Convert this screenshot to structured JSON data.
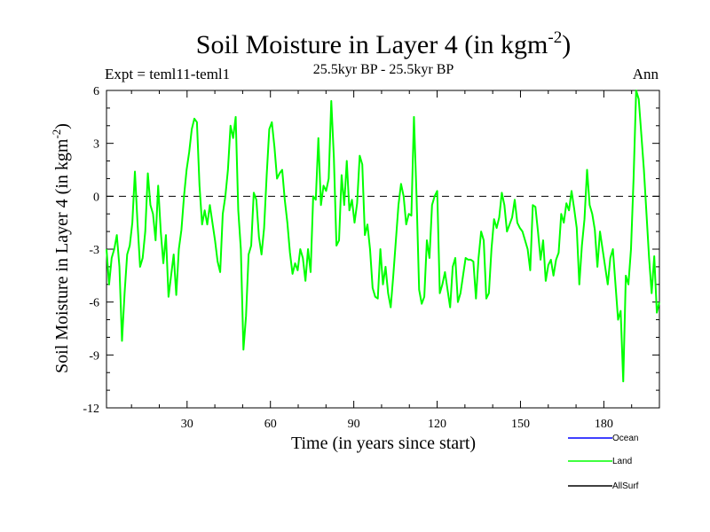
{
  "chart_data": {
    "type": "line",
    "title": "Soil Moisture in Layer 4 (in kgm",
    "title_superscript": "-2",
    "title_close": ")",
    "subtitle": "25.5kyr BP - 25.5kyr BP",
    "left_label": "Expt = teml11-teml1",
    "right_label": "Ann",
    "xlabel": "Time (in years since start)",
    "ylabel": "Soil Moisture in Layer 4 (in kgm",
    "ylabel_superscript": "-2",
    "ylabel_close": ")",
    "xlim": [
      1,
      200
    ],
    "ylim": [
      -12,
      6
    ],
    "xticks": [
      30,
      60,
      90,
      120,
      150,
      180
    ],
    "xtick_labels": [
      "30",
      "60",
      "90",
      "120",
      "150",
      "180"
    ],
    "yticks": [
      -12,
      -9,
      -6,
      -3,
      0,
      3,
      6
    ],
    "ytick_labels": [
      "-12",
      "-9",
      "-6",
      "-3",
      "0",
      "3",
      "6"
    ],
    "reference_line": 0,
    "legend": [
      {
        "name": "Ocean",
        "color": "#0000ff"
      },
      {
        "name": "Land",
        "color": "#00ff00"
      },
      {
        "name": "AllSurf",
        "color": "#000000"
      }
    ],
    "series": [
      {
        "name": "Land",
        "color": "#00ff00",
        "values": [
          -3.0,
          -5.0,
          -3.5,
          -3.0,
          -2.2,
          -4.0,
          -8.2,
          -5.5,
          -3.3,
          -2.8,
          -1.5,
          1.4,
          -1.5,
          -4.0,
          -3.5,
          -2.0,
          1.3,
          -0.5,
          -1.0,
          -2.5,
          0.6,
          -2.0,
          -3.8,
          -2.2,
          -5.7,
          -4.5,
          -3.3,
          -5.6,
          -3.0,
          -1.9,
          0.0,
          1.5,
          2.5,
          3.8,
          4.4,
          4.2,
          0.6,
          -1.6,
          -0.8,
          -1.6,
          -0.5,
          -1.5,
          -2.5,
          -3.7,
          -4.3,
          -1.0,
          0.0,
          1.5,
          4.0,
          3.3,
          4.5,
          -0.8,
          -3.0,
          -8.7,
          -6.8,
          -3.3,
          -2.8,
          0.2,
          -0.2,
          -2.3,
          -3.3,
          -1.8,
          1.2,
          3.8,
          4.2,
          2.8,
          1.0,
          1.3,
          1.5,
          -0.2,
          -1.5,
          -3.2,
          -4.4,
          -3.8,
          -4.2,
          -3.0,
          -3.5,
          -4.8,
          -3.0,
          -4.3,
          0.0,
          -0.2,
          3.3,
          -0.5,
          0.6,
          0.3,
          1.0,
          5.4,
          2.2,
          -2.8,
          -2.5,
          1.2,
          -0.5,
          2.0,
          -0.8,
          -0.2,
          -1.5,
          -0.4,
          2.3,
          1.8,
          -2.2,
          -1.6,
          -3.0,
          -5.2,
          -5.7,
          -5.8,
          -3.0,
          -5.0,
          -4.0,
          -5.5,
          -6.3,
          -4.5,
          -2.5,
          -0.5,
          0.7,
          0.0,
          -1.6,
          -1.0,
          -1.1,
          4.5,
          0.0,
          -5.3,
          -6.1,
          -5.7,
          -2.5,
          -3.5,
          -0.5,
          0.0,
          0.3,
          -5.5,
          -5.0,
          -4.3,
          -5.3,
          -6.3,
          -4.0,
          -3.5,
          -6.0,
          -5.5,
          -4.5,
          -3.5,
          -3.6,
          -3.6,
          -3.7,
          -5.8,
          -3.5,
          -2.0,
          -2.5,
          -5.8,
          -5.5,
          -3.0,
          -1.3,
          -1.8,
          -1.2,
          0.2,
          -0.5,
          -2.0,
          -1.6,
          -1.2,
          -0.2,
          -1.5,
          -1.8,
          -2.0,
          -2.5,
          -3.0,
          -4.2,
          -0.5,
          -0.6,
          -2.0,
          -3.6,
          -2.5,
          -4.8,
          -3.9,
          -3.6,
          -4.5,
          -3.6,
          -3.2,
          -1.0,
          -1.5,
          -0.4,
          -0.8,
          0.3,
          -0.7,
          -1.8,
          -5.0,
          -2.8,
          -1.3,
          1.5,
          -0.5,
          -1.0,
          -1.9,
          -4.0,
          -2.0,
          -3.0,
          -4.0,
          -5.0,
          -3.5,
          -3.0,
          -5.0,
          -7.0,
          -6.5,
          -10.5,
          -4.5,
          -5.0,
          -3.0,
          1.0,
          6.0,
          5.5,
          3.5,
          1.5,
          -1.0,
          -3.5,
          -5.5,
          -3.4,
          -6.6,
          -6.0
        ]
      }
    ]
  }
}
